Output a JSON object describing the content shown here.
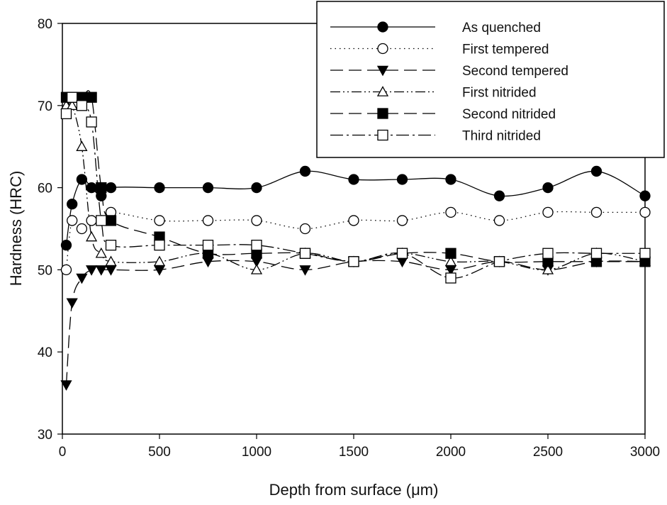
{
  "chart_data": {
    "type": "line",
    "title": "",
    "xlabel": "Depth from surface (μm)",
    "ylabel": "Hardness (HRC)",
    "xlim": [
      0,
      3000
    ],
    "ylim": [
      30,
      80
    ],
    "xticks": [
      0,
      500,
      1000,
      1500,
      2000,
      2500,
      3000
    ],
    "yticks": [
      30,
      40,
      50,
      60,
      70,
      80
    ],
    "grid": false,
    "legend_position": "top-right",
    "x": [
      20,
      50,
      100,
      150,
      200,
      250,
      500,
      750,
      1000,
      1250,
      1500,
      1750,
      2000,
      2250,
      2500,
      2750,
      3000
    ],
    "series": [
      {
        "name": "As quenched",
        "marker": "filled-circle",
        "line": "solid",
        "values": [
          53,
          58,
          61,
          60,
          59,
          60,
          60,
          60,
          60,
          62,
          61,
          61,
          61,
          59,
          60,
          62,
          59
        ]
      },
      {
        "name": "First tempered",
        "marker": "open-circle",
        "line": "dotted",
        "values": [
          50,
          56,
          55,
          56,
          56,
          57,
          56,
          56,
          56,
          55,
          56,
          56,
          57,
          56,
          57,
          57,
          57
        ]
      },
      {
        "name": "Second tempered",
        "marker": "filled-triangle-down",
        "line": "long-dash",
        "values": [
          36,
          46,
          49,
          50,
          50,
          50,
          50,
          51,
          51,
          50,
          51,
          51,
          50,
          51,
          50,
          51,
          51
        ]
      },
      {
        "name": "First nitrided",
        "marker": "open-triangle-up",
        "line": "dash-dot-dot",
        "values": [
          70,
          70,
          65,
          54,
          52,
          51,
          51,
          52,
          50,
          52,
          51,
          52,
          51,
          51,
          50,
          52,
          51
        ]
      },
      {
        "name": "Second nitrided",
        "marker": "filled-square",
        "line": "long-dash",
        "values": [
          71,
          71,
          71,
          71,
          60,
          56,
          54,
          52,
          52,
          52,
          51,
          52,
          52,
          51,
          51,
          51,
          51
        ]
      },
      {
        "name": "Third nitrided",
        "marker": "open-square",
        "line": "dash-dot",
        "values": [
          69,
          71,
          70,
          68,
          56,
          53,
          53,
          53,
          53,
          52,
          51,
          52,
          49,
          51,
          52,
          52,
          52
        ]
      }
    ]
  }
}
